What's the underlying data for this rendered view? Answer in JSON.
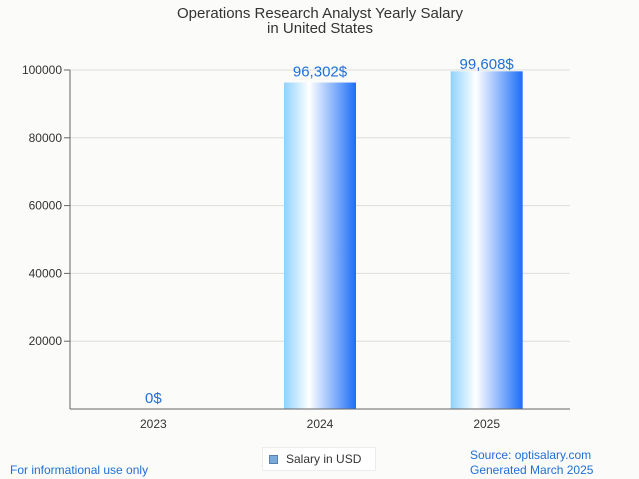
{
  "chart_data": {
    "type": "bar",
    "title": [
      "Operations Research Analyst Yearly Salary",
      "in United States"
    ],
    "categories": [
      "2023",
      "2024",
      "2025"
    ],
    "series": [
      {
        "name": "Salary in USD",
        "values": [
          0,
          96302,
          99608
        ],
        "data_labels": [
          "0$",
          "96,302$",
          "99,608$"
        ]
      }
    ],
    "y_ticks": [
      "20000",
      "40000",
      "60000",
      "80000",
      "100000"
    ],
    "y_tick_values": [
      20000,
      40000,
      60000,
      80000,
      100000
    ],
    "ylim": [
      0,
      100000
    ],
    "grid": true,
    "legend_position": "bottom-center",
    "colors": {
      "bar_gradient": [
        "#8ed2ff",
        "#ffffff",
        "#1c6ef8"
      ],
      "data_label": "#1f6fd6",
      "grid": "#dcdcdc",
      "axis": "#666666",
      "text": "#333333"
    }
  },
  "footer": {
    "disclaimer": "For informational use only",
    "source": "Source: optisalary.com",
    "generated": "Generated March 2025"
  }
}
